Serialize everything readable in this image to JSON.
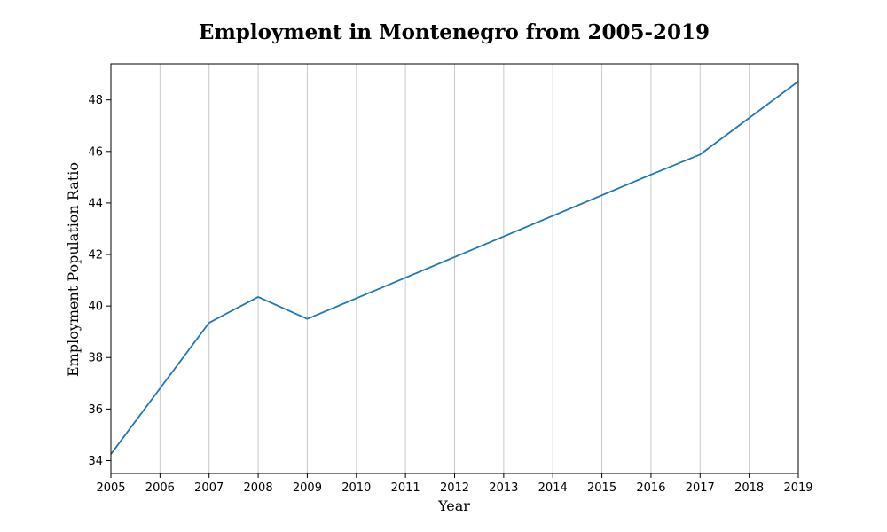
{
  "chart_data": {
    "type": "line",
    "title": "Employment in Montenegro from 2005-2019",
    "xlabel": "Year",
    "ylabel": "Employment Population Ratio",
    "x": [
      2005,
      2006,
      2007,
      2008,
      2009,
      2010,
      2011,
      2012,
      2013,
      2014,
      2015,
      2016,
      2017,
      2018,
      2019
    ],
    "xticks": [
      "2005",
      "2006",
      "2007",
      "2008",
      "2009",
      "2010",
      "2011",
      "2012",
      "2013",
      "2014",
      "2015",
      "2016",
      "2017",
      "2018",
      "2019"
    ],
    "yticks": [
      "34",
      "36",
      "38",
      "40",
      "42",
      "44",
      "46",
      "48"
    ],
    "xlim": [
      2005,
      2019
    ],
    "ylim": [
      33.5,
      49.4
    ],
    "grid": "vertical",
    "series": [
      {
        "values": [
          34.25,
          36.8,
          39.35,
          40.35,
          39.5,
          40.3,
          41.1,
          41.9,
          42.7,
          43.5,
          44.3,
          45.1,
          45.88,
          47.3,
          48.72
        ],
        "color": "#1f77b4"
      }
    ]
  }
}
